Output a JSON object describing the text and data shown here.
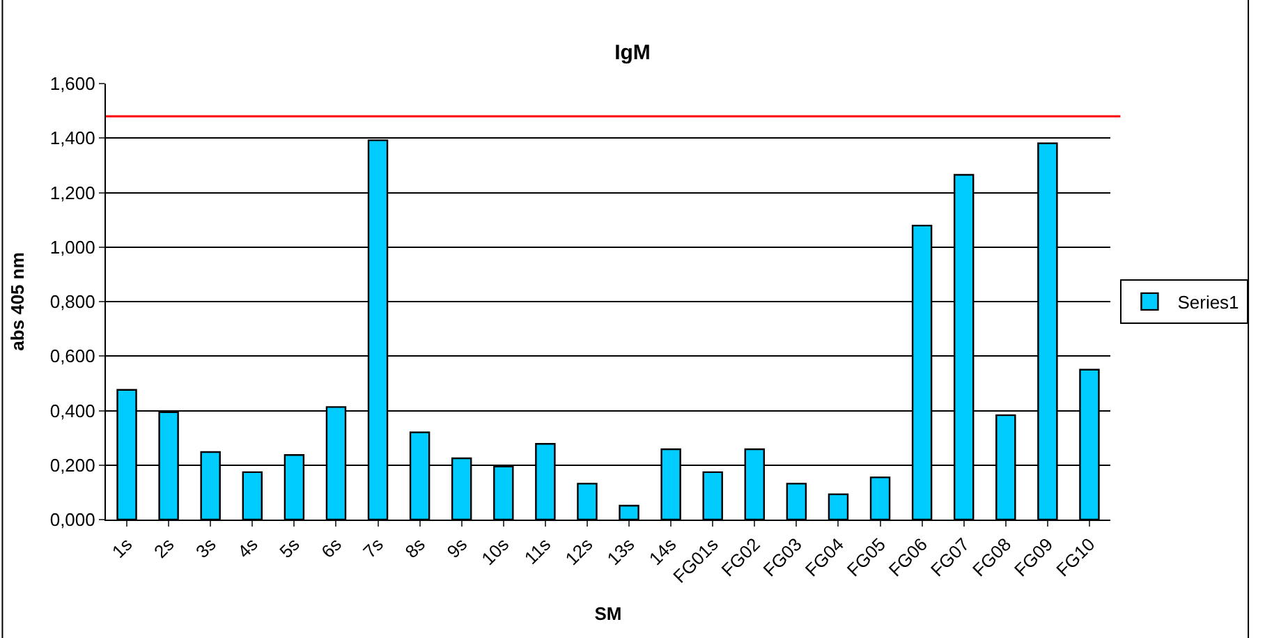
{
  "chart_data": {
    "type": "bar",
    "title": "IgM",
    "xlabel": "SM",
    "ylabel": "abs 405 nm",
    "categories": [
      "1s",
      "2s",
      "3s",
      "4s",
      "5s",
      "6s",
      "7s",
      "8s",
      "9s",
      "10s",
      "11s",
      "12s",
      "13s",
      "14s",
      "FG01s",
      "FG02",
      "FG03",
      "FG04",
      "FG05",
      "FG06",
      "FG07",
      "FG08",
      "FG09",
      "FG10"
    ],
    "series": [
      {
        "name": "Series1",
        "color": "#00ccff",
        "values": [
          0.476,
          0.394,
          0.248,
          0.174,
          0.237,
          0.413,
          1.392,
          0.32,
          0.225,
          0.195,
          0.278,
          0.132,
          0.051,
          0.258,
          0.174,
          0.258,
          0.132,
          0.093,
          0.155,
          1.079,
          1.265,
          0.383,
          1.381,
          0.55
        ]
      }
    ],
    "ylim": [
      0,
      1.6
    ],
    "yticks": [
      {
        "value": 0,
        "label": "0,000"
      },
      {
        "value": 0.2,
        "label": "0,200"
      },
      {
        "value": 0.4,
        "label": "0,400"
      },
      {
        "value": 0.6,
        "label": "0,600"
      },
      {
        "value": 0.8,
        "label": "0,800"
      },
      {
        "value": 1.0,
        "label": "1,000"
      },
      {
        "value": 1.2,
        "label": "1,200"
      },
      {
        "value": 1.4,
        "label": "1,400"
      },
      {
        "value": 1.6,
        "label": "1,600"
      }
    ],
    "ref_lines": [
      {
        "axis": "y",
        "value": 1.48,
        "color": "#ff0000"
      }
    ],
    "grid": "y",
    "legend": "right"
  }
}
